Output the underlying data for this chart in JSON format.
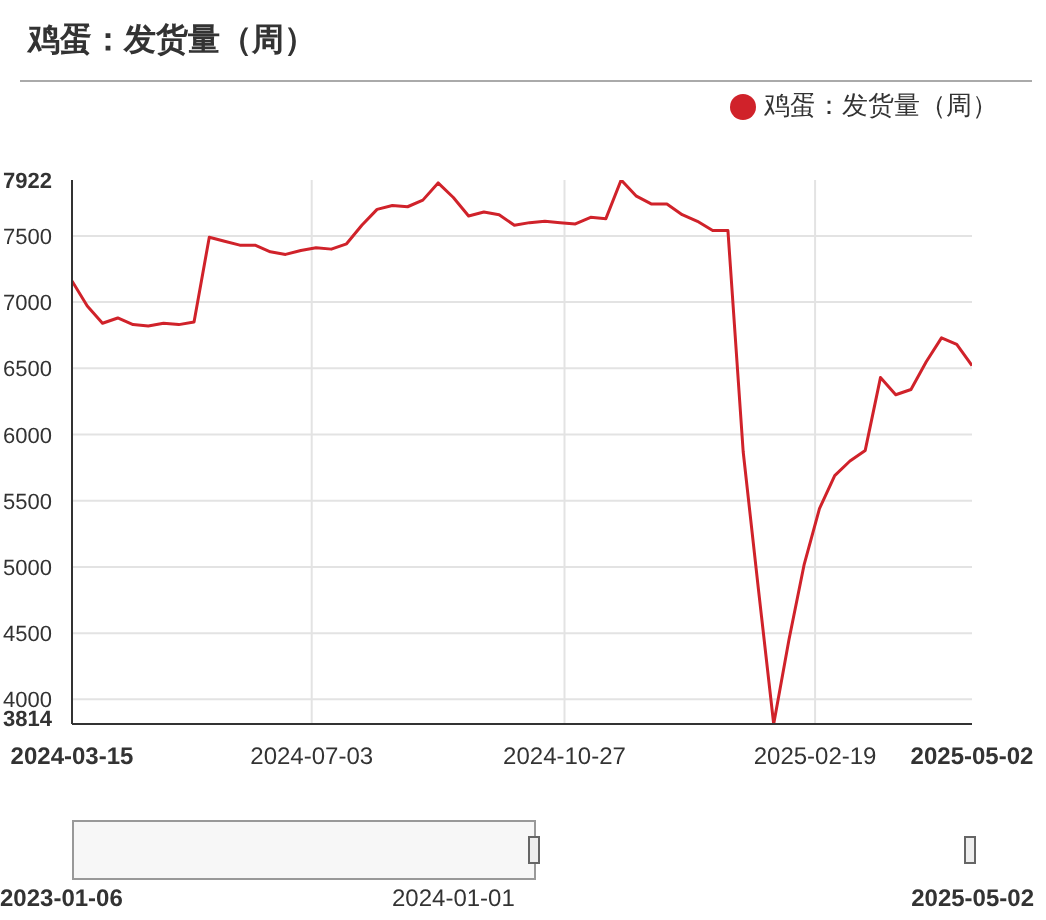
{
  "chart_data": {
    "type": "line",
    "title": "鸡蛋：发货量（周）",
    "x": [
      "2024-03-15",
      "2024-03-22",
      "2024-03-29",
      "2024-04-05",
      "2024-04-12",
      "2024-04-19",
      "2024-04-26",
      "2024-05-03",
      "2024-05-10",
      "2024-05-17",
      "2024-05-24",
      "2024-05-31",
      "2024-06-07",
      "2024-06-14",
      "2024-06-21",
      "2024-06-28",
      "2024-07-05",
      "2024-07-12",
      "2024-07-19",
      "2024-07-26",
      "2024-08-02",
      "2024-08-09",
      "2024-08-16",
      "2024-08-23",
      "2024-08-30",
      "2024-09-06",
      "2024-09-13",
      "2024-09-20",
      "2024-09-27",
      "2024-10-04",
      "2024-10-11",
      "2024-10-18",
      "2024-10-25",
      "2024-11-01",
      "2024-11-08",
      "2024-11-15",
      "2024-11-22",
      "2024-11-29",
      "2024-12-06",
      "2024-12-13",
      "2024-12-20",
      "2024-12-27",
      "2025-01-03",
      "2025-01-10",
      "2025-01-17",
      "2025-01-24",
      "2025-01-31",
      "2025-02-07",
      "2025-02-14",
      "2025-02-21",
      "2025-02-28",
      "2025-03-07",
      "2025-03-14",
      "2025-03-21",
      "2025-03-28",
      "2025-04-04",
      "2025-04-11",
      "2025-04-18",
      "2025-04-25",
      "2025-05-02"
    ],
    "series": [
      {
        "name": "鸡蛋：发货量（周）",
        "color": "#d0222a",
        "values": [
          7160,
          6970,
          6840,
          6880,
          6830,
          6820,
          6840,
          6830,
          6850,
          7490,
          7460,
          7430,
          7430,
          7380,
          7360,
          7390,
          7410,
          7400,
          7440,
          7580,
          7700,
          7730,
          7720,
          7770,
          7900,
          7790,
          7650,
          7680,
          7660,
          7580,
          7600,
          7610,
          7600,
          7590,
          7640,
          7630,
          7922,
          7800,
          7740,
          7740,
          7660,
          7610,
          7540,
          7540,
          5870,
          4830,
          3814,
          4450,
          5020,
          5440,
          5690,
          5800,
          5880,
          6430,
          6300,
          6340,
          6550,
          6730,
          6680,
          6520
        ]
      }
    ],
    "xlim": [
      "2024-03-15",
      "2025-05-02"
    ],
    "xticks": [
      "2024-03-15",
      "2024-07-03",
      "2024-10-27",
      "2025-02-19",
      "2025-05-02"
    ],
    "ylim": [
      3814,
      7922
    ],
    "yticks": [
      3814,
      4000,
      4500,
      5000,
      5500,
      6000,
      6500,
      7000,
      7500,
      7922
    ],
    "grid": true,
    "legend": "top right",
    "annotations": [
      "2023-01-06",
      "2024-01-01",
      "2025-05-02"
    ]
  }
}
